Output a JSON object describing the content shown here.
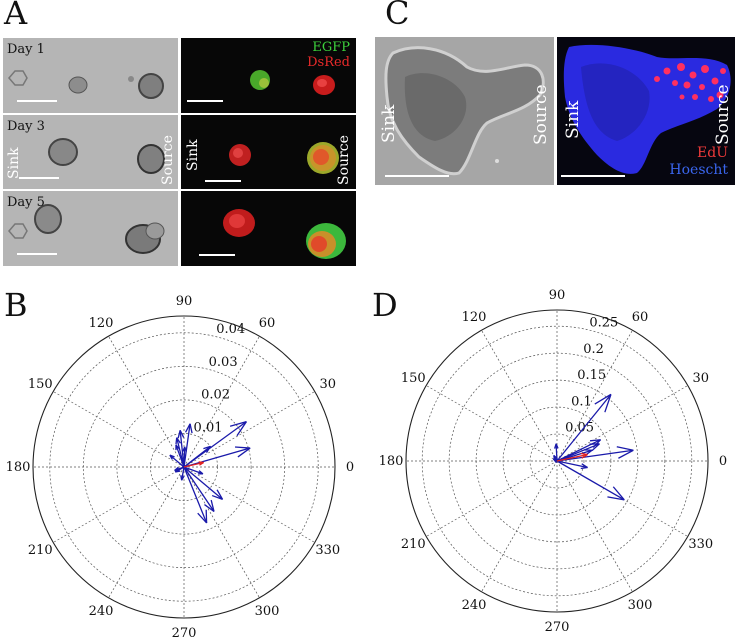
{
  "panels": {
    "a": {
      "letter": "A",
      "days": [
        "Day 1",
        "Day 3",
        "Day 5"
      ],
      "legend": {
        "egfp": "EGFP",
        "dsred": "DsRed"
      },
      "sink": "Sink",
      "source": "Source",
      "colors": {
        "egfp": "#3cd23c",
        "dsred": "#e82a2a"
      }
    },
    "b": {
      "letter": "B"
    },
    "c": {
      "letter": "C",
      "sink": "Sink",
      "source": "Source",
      "legend": {
        "edu": "EdU",
        "hoechst": "Hoescht"
      },
      "colors": {
        "edu": "#ee3a3a",
        "hoechst": "#3a66ee"
      }
    },
    "d": {
      "letter": "D"
    }
  },
  "chart_data": [
    {
      "type": "polar",
      "panel": "B",
      "angle_ticks": [
        "0",
        "30",
        "60",
        "90",
        "120",
        "150",
        "180",
        "210",
        "240",
        "270",
        "300",
        "330"
      ],
      "radial_ticks": [
        0.01,
        0.02,
        0.03,
        0.04
      ],
      "radial_tick_labels": [
        "0.01",
        "0.02",
        "0.03",
        "0.04"
      ],
      "rmax": 0.045,
      "grid": true,
      "series": [
        {
          "color": "#1a1aaa",
          "vectors": [
            [
              36,
              0.023
            ],
            [
              16,
              0.0205
            ],
            [
              38,
              0.01
            ],
            [
              82,
              0.013
            ],
            [
              96,
              0.011
            ],
            [
              104,
              0.009
            ],
            [
              110,
              0.007
            ],
            [
              88,
              0.006
            ],
            [
              140,
              0.0055
            ],
            [
              -20,
              0.006
            ],
            [
              -40,
              0.015
            ],
            [
              -56,
              0.016
            ],
            [
              -68,
              0.018
            ],
            [
              -100,
              0.004
            ],
            [
              -150,
              0.003
            ],
            [
              200,
              0.003
            ]
          ]
        },
        {
          "color": "#e02020",
          "vectors": [
            [
              13,
              0.006
            ]
          ]
        }
      ]
    },
    {
      "type": "polar",
      "panel": "D",
      "angle_ticks": [
        "0",
        "30",
        "60",
        "90",
        "120",
        "150",
        "180",
        "210",
        "240",
        "270",
        "300",
        "330"
      ],
      "radial_ticks": [
        0.05,
        0.1,
        0.15,
        0.2,
        0.25
      ],
      "radial_tick_labels": [
        "0.05",
        "0.1",
        "0.15",
        "0.2",
        "0.25"
      ],
      "rmax": 0.28,
      "grid": true,
      "series": [
        {
          "color": "#1a1aaa",
          "vectors": [
            [
              51,
              0.159
            ],
            [
              26,
              0.09
            ],
            [
              22,
              0.085
            ],
            [
              17,
              0.068
            ],
            [
              8,
              0.143
            ],
            [
              -30,
              0.144
            ],
            [
              -12,
              0.058
            ],
            [
              93,
              0.032
            ],
            [
              120,
              0.012
            ],
            [
              150,
              0.008
            ]
          ]
        },
        {
          "color": "#e02020",
          "vectors": [
            [
              12,
              0.058
            ]
          ]
        }
      ]
    }
  ]
}
